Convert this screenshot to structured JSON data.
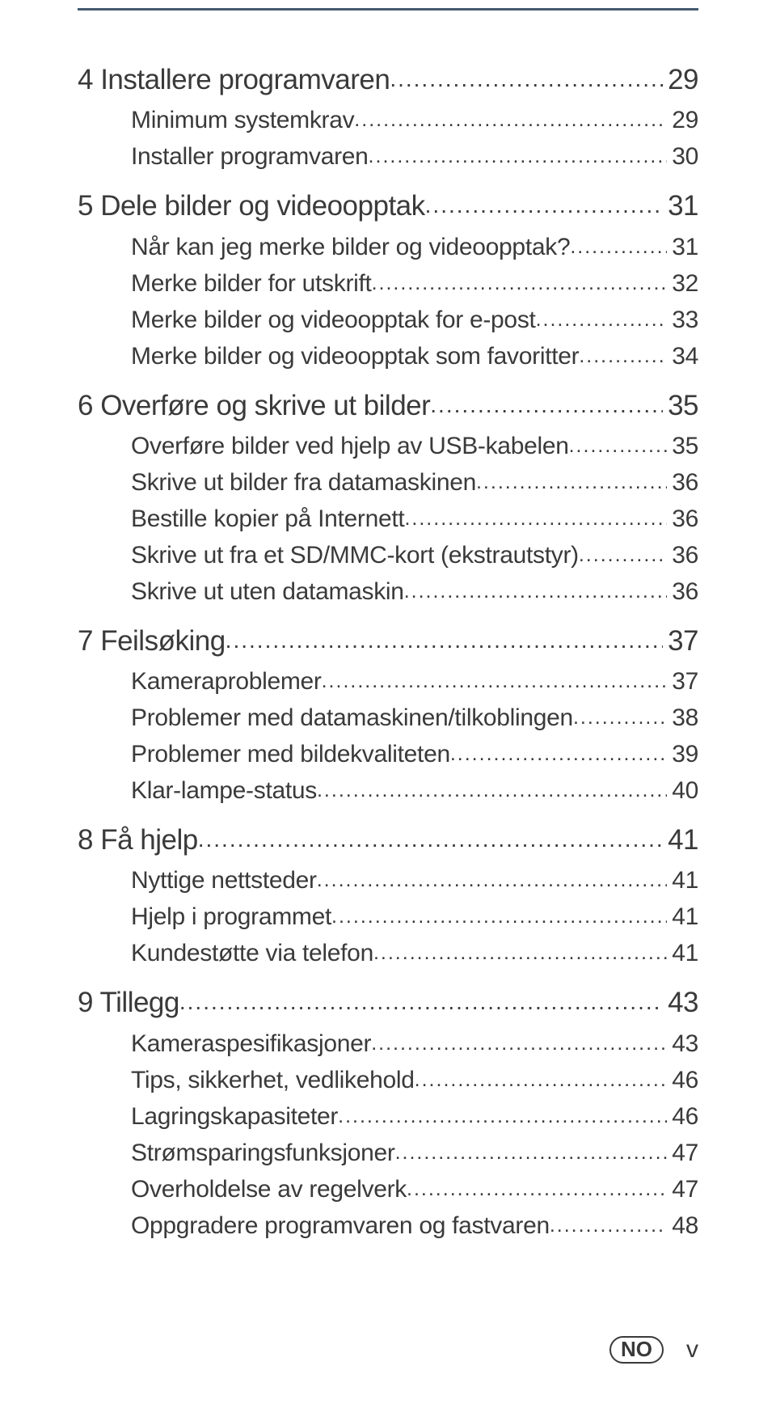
{
  "toc": [
    {
      "level": 1,
      "label": "4 Installere programvaren",
      "page": "29"
    },
    {
      "level": 2,
      "label": "Minimum systemkrav",
      "page": "29"
    },
    {
      "level": 2,
      "label": "Installer programvaren",
      "page": "30"
    },
    {
      "level": 1,
      "label": "5 Dele bilder og videoopptak",
      "page": "31"
    },
    {
      "level": 2,
      "label": "Når kan jeg merke bilder og videoopptak?",
      "page": "31"
    },
    {
      "level": 2,
      "label": "Merke bilder for utskrift",
      "page": "32"
    },
    {
      "level": 2,
      "label": "Merke bilder og videoopptak for e-post",
      "page": "33"
    },
    {
      "level": 2,
      "label": "Merke bilder og videoopptak som favoritter",
      "page": "34"
    },
    {
      "level": 1,
      "label": "6 Overføre og skrive ut bilder",
      "page": "35"
    },
    {
      "level": 2,
      "label": "Overføre bilder ved hjelp av USB-kabelen",
      "page": "35"
    },
    {
      "level": 2,
      "label": "Skrive ut bilder fra datamaskinen",
      "page": "36"
    },
    {
      "level": 2,
      "label": "Bestille kopier på Internett",
      "page": "36"
    },
    {
      "level": 2,
      "label": "Skrive ut fra et SD/MMC-kort (ekstrautstyr)",
      "page": "36"
    },
    {
      "level": 2,
      "label": "Skrive ut uten datamaskin",
      "page": "36"
    },
    {
      "level": 1,
      "label": "7 Feilsøking",
      "page": "37"
    },
    {
      "level": 2,
      "label": "Kameraproblemer",
      "page": "37"
    },
    {
      "level": 2,
      "label": "Problemer med datamaskinen/tilkoblingen",
      "page": "38"
    },
    {
      "level": 2,
      "label": "Problemer med bildekvaliteten",
      "page": "39"
    },
    {
      "level": 2,
      "label": "Klar-lampe-status",
      "page": "40"
    },
    {
      "level": 1,
      "label": "8 Få hjelp",
      "page": "41"
    },
    {
      "level": 2,
      "label": "Nyttige nettsteder",
      "page": "41"
    },
    {
      "level": 2,
      "label": "Hjelp i programmet",
      "page": "41"
    },
    {
      "level": 2,
      "label": "Kundestøtte via telefon",
      "page": "41"
    },
    {
      "level": 1,
      "label": "9 Tillegg",
      "page": "43"
    },
    {
      "level": 2,
      "label": "Kameraspesifikasjoner",
      "page": "43"
    },
    {
      "level": 2,
      "label": "Tips, sikkerhet, vedlikehold",
      "page": "46"
    },
    {
      "level": 2,
      "label": "Lagringskapasiteter",
      "page": "46"
    },
    {
      "level": 2,
      "label": "Strømsparingsfunksjoner",
      "page": "47"
    },
    {
      "level": 2,
      "label": "Overholdelse av regelverk",
      "page": "47"
    },
    {
      "level": 2,
      "label": "Oppgradere programvaren og fastvaren",
      "page": "48"
    }
  ],
  "footer": {
    "lang": "NO",
    "folio": "v"
  },
  "colors": {
    "rule": "#445a6f",
    "text": "#3a3a3a",
    "background": "#ffffff"
  }
}
